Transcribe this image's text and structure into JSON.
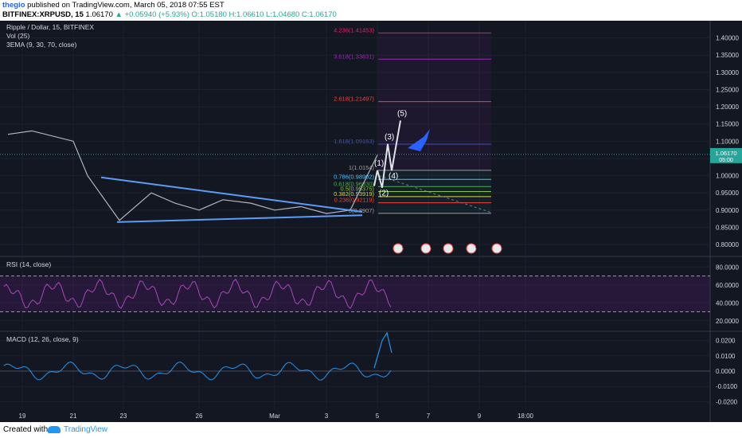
{
  "header": {
    "user": "thegio",
    "published_text": "published on TradingView.com, March 05, 2018 07:55 EST",
    "symbol_line": "BITFINEX:XRPUSD, 15",
    "price": "1.06170",
    "change": "+0.05940 (+5.93%)",
    "ohlc": "O:1.05180 H:1.06610 L:1.04680 C:1.06170"
  },
  "footer": {
    "created_with": "Created with",
    "brand": "TradingView"
  },
  "legend": {
    "title": "Ripple / Dollar, 15, BITFINEX",
    "vol": "Vol (25)",
    "ema": "3EMA (9, 30, 70, close)",
    "rsi": "RSI (14, close)",
    "macd": "MACD (12, 26, close, 9)"
  },
  "current_price_tag": {
    "price": "1.06170",
    "countdown": "05:00"
  },
  "fib_levels": [
    {
      "label": "4.236(1.41453)",
      "value": 1.41453,
      "color": "#e91e63"
    },
    {
      "label": "3.618(1.33831)",
      "value": 1.33831,
      "color": "#9c27b0"
    },
    {
      "label": "2.618(1.21497)",
      "value": 1.21497,
      "color": "#f44336"
    },
    {
      "label": "1.618(1.09163)",
      "value": 1.09163,
      "color": "#3f51b5"
    },
    {
      "label": "1(1.0154)",
      "value": 1.0154,
      "color": "#9e9e9e"
    },
    {
      "label": "0.786(0.98902)",
      "value": 0.98902,
      "color": "#4fc3f7"
    },
    {
      "label": "0.618(0.96830)",
      "value": 0.9683,
      "color": "#4caf50"
    },
    {
      "label": "0.5(0.95375)",
      "value": 0.95375,
      "color": "#8bc34a"
    },
    {
      "label": "0.382(0.93919)",
      "value": 0.93919,
      "color": "#cddc39"
    },
    {
      "label": "0.236(0.92119)",
      "value": 0.92119,
      "color": "#f44336"
    },
    {
      "label": "0(0.8907)",
      "value": 0.8907,
      "color": "#9e9e9e"
    }
  ],
  "wave_labels": [
    "(1)",
    "(2)",
    "(3)",
    "(4)",
    "(5)"
  ],
  "event_badges": [
    "2",
    "3",
    "3",
    "22",
    "10"
  ],
  "chart_data": [
    {
      "type": "line",
      "title": "Ripple / Dollar, 15, BITFINEX",
      "ylim": [
        0.77,
        1.45
      ],
      "y_ticks": [
        "1.40000",
        "1.35000",
        "1.30000",
        "1.25000",
        "1.20000",
        "1.15000",
        "1.10000",
        "1.05000",
        "1.00000",
        "0.95000",
        "0.90000",
        "0.85000",
        "0.80000"
      ],
      "x_ticks": [
        "19",
        "21",
        "23",
        "26",
        "Mar",
        "3",
        "5",
        "7",
        "9",
        "18:00"
      ],
      "series": [
        {
          "name": "XRPUSD",
          "x": [
            "19",
            "20",
            "21",
            "22",
            "23",
            "24",
            "25",
            "26",
            "27",
            "28",
            "Mar",
            "2",
            "3",
            "4",
            "5"
          ],
          "values": [
            1.12,
            1.13,
            1.1,
            1.0,
            0.87,
            0.95,
            0.92,
            0.9,
            0.93,
            0.92,
            0.9,
            0.91,
            0.89,
            0.9,
            1.06
          ]
        }
      ],
      "wave_points": [
        1.0154,
        0.965,
        1.092,
        1.015,
        1.16
      ]
    },
    {
      "type": "line",
      "title": "RSI (14, close)",
      "ylim": [
        10,
        90
      ],
      "y_ticks": [
        "80.0000",
        "60.0000",
        "40.0000",
        "20.0000"
      ],
      "bands": [
        70,
        30
      ]
    },
    {
      "type": "bar",
      "title": "MACD (12, 26, close, 9)",
      "ylim": [
        -0.025,
        0.025
      ],
      "y_ticks": [
        "0.0200",
        "0.0100",
        "0.0000",
        "-0.0100",
        "-0.0200"
      ]
    }
  ]
}
